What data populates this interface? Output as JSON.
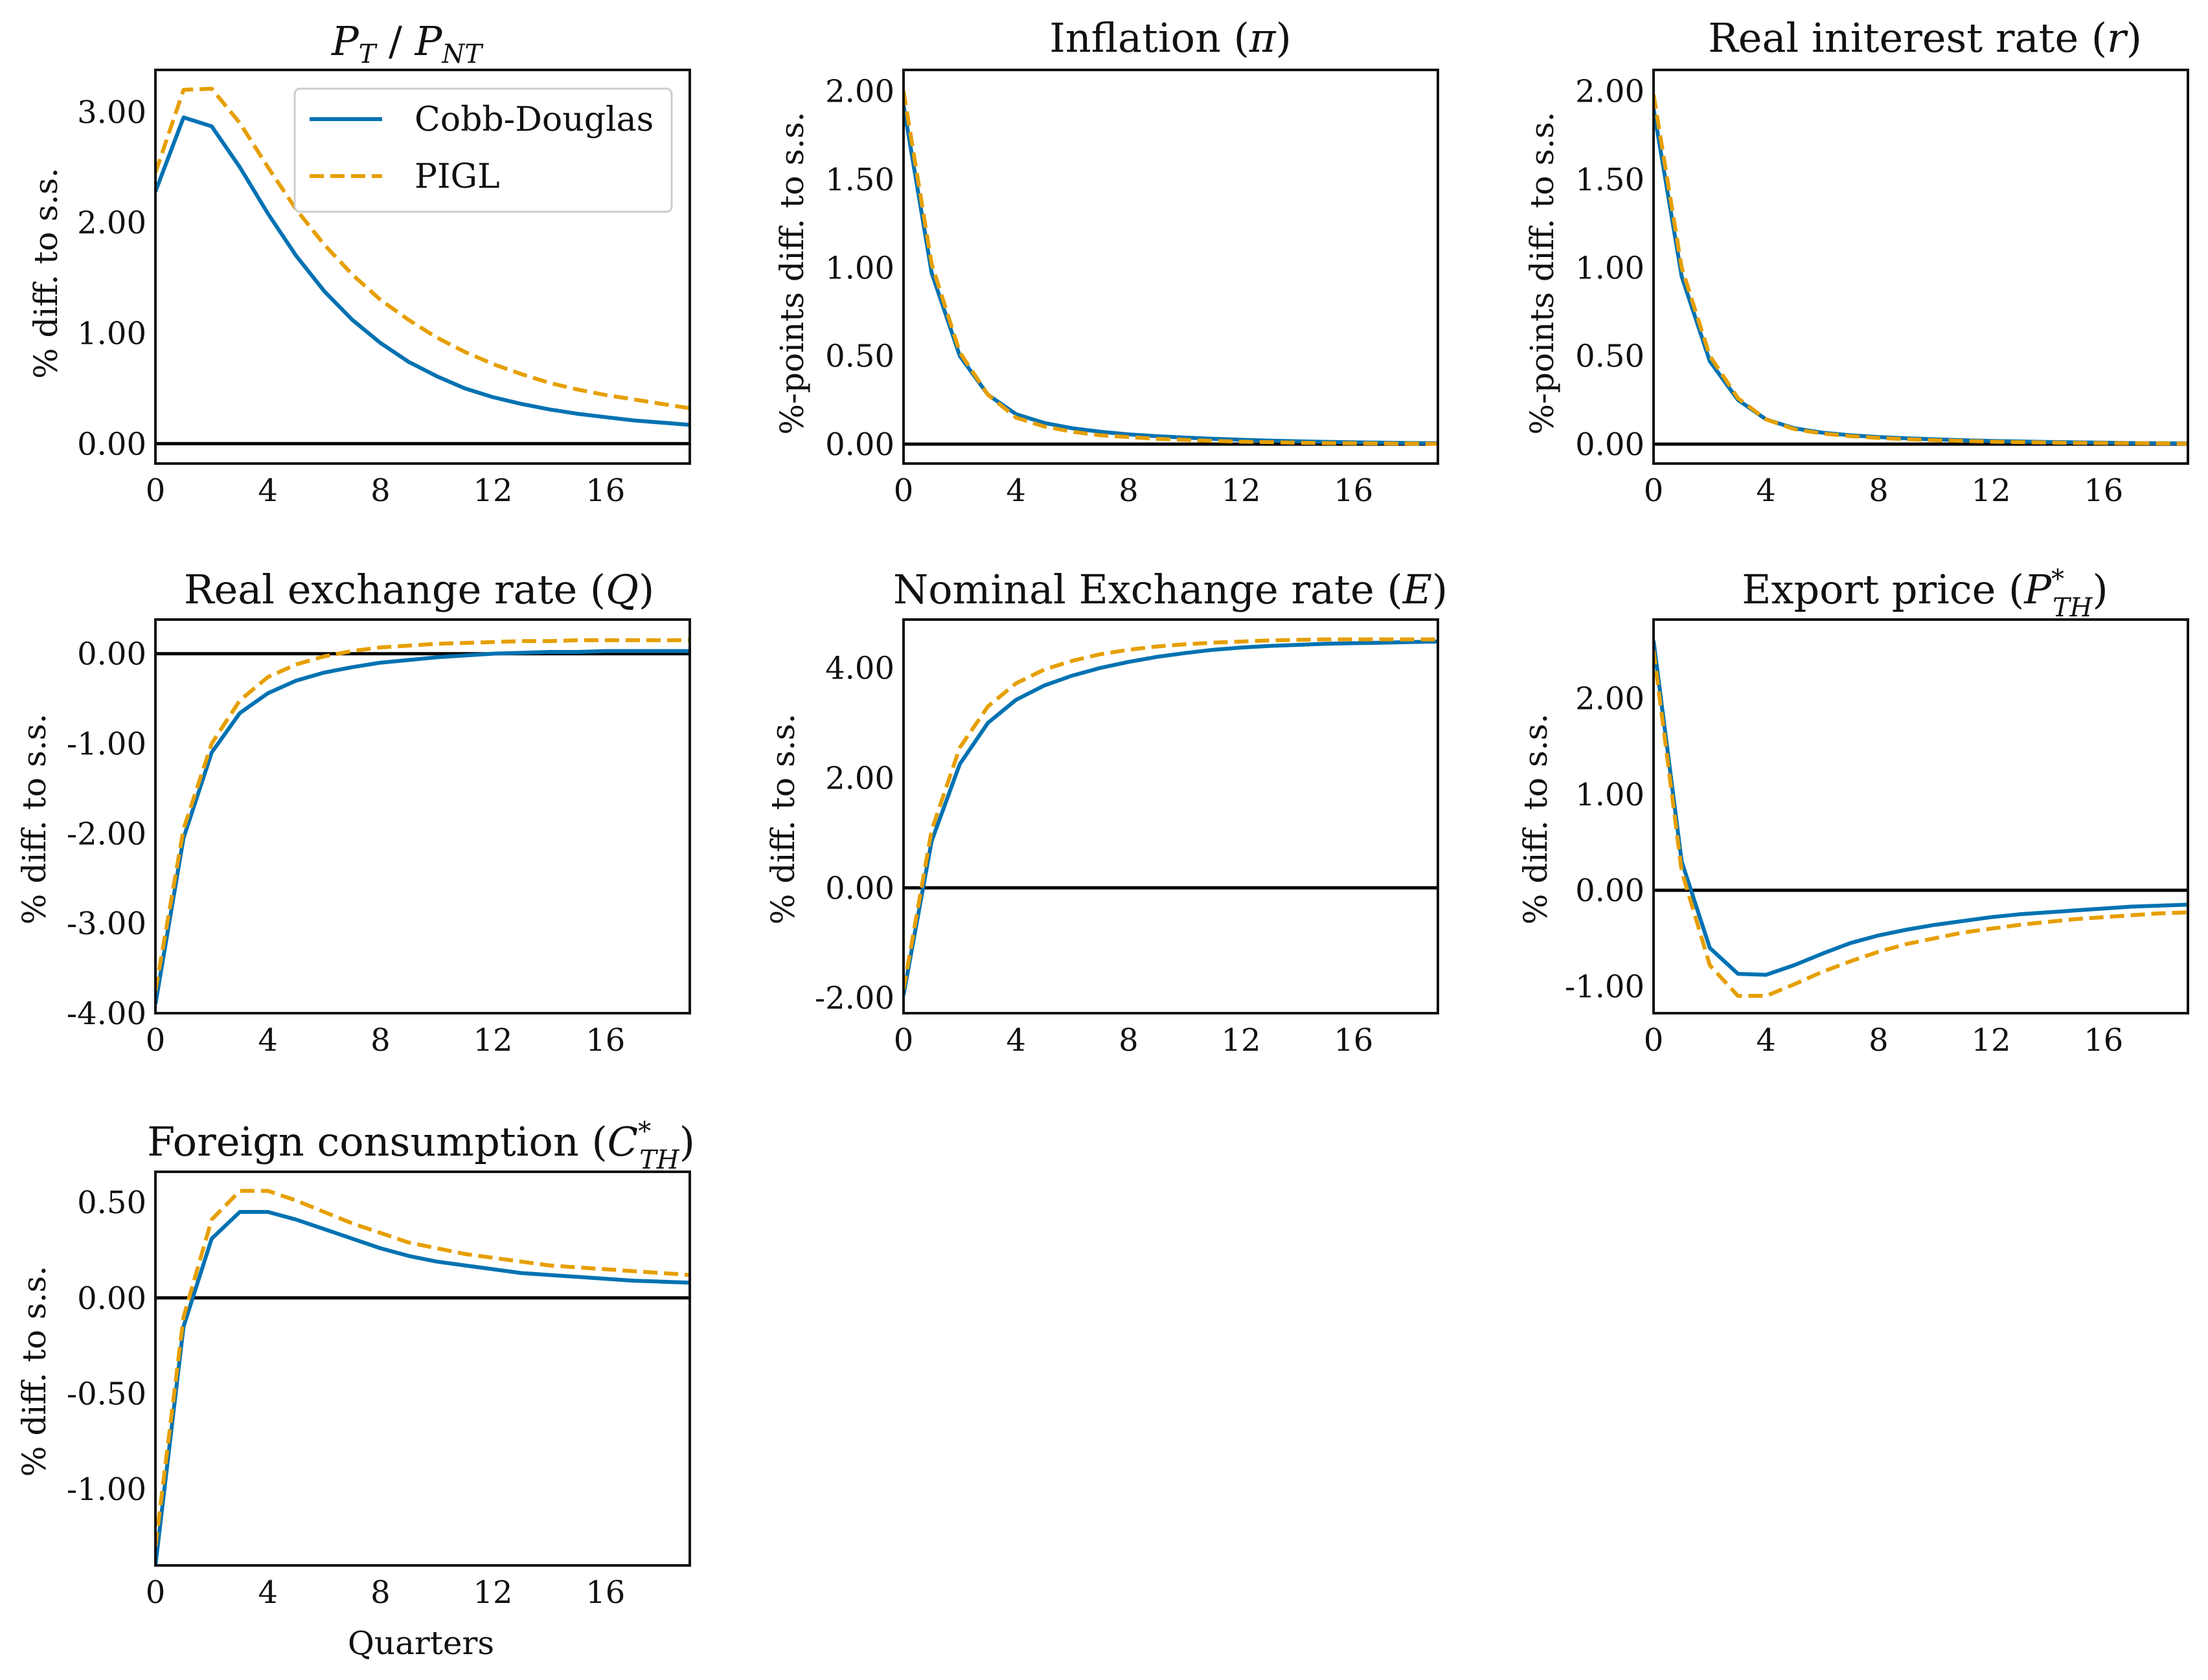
{
  "figure": {
    "legend": [
      {
        "label": "Cobb-Douglas",
        "color": "#0072B2",
        "dash": "solid"
      },
      {
        "label": "PIGL",
        "color": "#E69F00",
        "dash": "dashed"
      }
    ],
    "legend_placement": "top-right of first panel",
    "shared_xlabel": "Quarters"
  },
  "chart_data": [
    {
      "type": "line",
      "title": "P_T / P_NT",
      "ylabel": "% diff. to s.s.",
      "xlim": [
        0,
        19
      ],
      "ylim": [
        -0.18,
        3.38
      ],
      "xticks": [
        "0",
        "4",
        "8",
        "12",
        "16"
      ],
      "yticks": [
        {
          "v": 0,
          "label": "0.00"
        },
        {
          "v": 1,
          "label": "1.00"
        },
        {
          "v": 2,
          "label": "2.00"
        },
        {
          "v": 3,
          "label": "3.00"
        }
      ],
      "x": [
        0,
        1,
        2,
        3,
        4,
        5,
        6,
        7,
        8,
        9,
        10,
        11,
        12,
        13,
        14,
        15,
        16,
        17,
        18,
        19
      ],
      "series": [
        {
          "name": "Cobb-Douglas",
          "values": [
            2.28,
            2.95,
            2.87,
            2.5,
            2.08,
            1.7,
            1.38,
            1.12,
            0.91,
            0.74,
            0.61,
            0.5,
            0.42,
            0.36,
            0.31,
            0.27,
            0.24,
            0.21,
            0.19,
            0.17
          ]
        },
        {
          "name": "PIGL",
          "values": [
            2.45,
            3.2,
            3.21,
            2.9,
            2.5,
            2.12,
            1.8,
            1.53,
            1.3,
            1.12,
            0.96,
            0.83,
            0.72,
            0.63,
            0.55,
            0.49,
            0.44,
            0.4,
            0.36,
            0.32
          ]
        }
      ]
    },
    {
      "type": "line",
      "title": "Inflation (π)",
      "ylabel": "%-points diff. to s.s.",
      "xlim": [
        0,
        19
      ],
      "ylim": [
        -0.11,
        2.12
      ],
      "xticks": [
        "0",
        "4",
        "8",
        "12",
        "16"
      ],
      "yticks": [
        {
          "v": 0,
          "label": "0.00"
        },
        {
          "v": 0.5,
          "label": "0.50"
        },
        {
          "v": 1,
          "label": "1.00"
        },
        {
          "v": 1.5,
          "label": "1.50"
        },
        {
          "v": 2,
          "label": "2.00"
        }
      ],
      "x": [
        0,
        1,
        2,
        3,
        4,
        5,
        6,
        7,
        8,
        9,
        10,
        11,
        12,
        13,
        14,
        15,
        16,
        17,
        18,
        19
      ],
      "series": [
        {
          "name": "Cobb-Douglas",
          "values": [
            1.92,
            0.97,
            0.5,
            0.28,
            0.17,
            0.12,
            0.09,
            0.07,
            0.055,
            0.045,
            0.037,
            0.03,
            0.025,
            0.02,
            0.016,
            0.013,
            0.01,
            0.008,
            0.006,
            0.005
          ]
        },
        {
          "name": "PIGL",
          "values": [
            2.0,
            1.02,
            0.52,
            0.28,
            0.15,
            0.1,
            0.07,
            0.05,
            0.04,
            0.03,
            0.024,
            0.018,
            0.014,
            0.011,
            0.008,
            0.006,
            0.005,
            0.004,
            0.003,
            0.002
          ]
        }
      ]
    },
    {
      "type": "line",
      "title": "Real initerest rate (r)",
      "ylabel": "%-points diff. to s.s.",
      "xlim": [
        0,
        19
      ],
      "ylim": [
        -0.11,
        2.12
      ],
      "xticks": [
        "0",
        "4",
        "8",
        "12",
        "16"
      ],
      "yticks": [
        {
          "v": 0,
          "label": "0.00"
        },
        {
          "v": 0.5,
          "label": "0.50"
        },
        {
          "v": 1,
          "label": "1.00"
        },
        {
          "v": 1.5,
          "label": "1.50"
        },
        {
          "v": 2,
          "label": "2.00"
        }
      ],
      "x": [
        0,
        1,
        2,
        3,
        4,
        5,
        6,
        7,
        8,
        9,
        10,
        11,
        12,
        13,
        14,
        15,
        16,
        17,
        18,
        19
      ],
      "series": [
        {
          "name": "Cobb-Douglas",
          "values": [
            1.9,
            0.95,
            0.47,
            0.25,
            0.14,
            0.09,
            0.065,
            0.05,
            0.04,
            0.033,
            0.027,
            0.022,
            0.018,
            0.015,
            0.012,
            0.01,
            0.008,
            0.006,
            0.005,
            0.004
          ]
        },
        {
          "name": "PIGL",
          "values": [
            1.98,
            1.0,
            0.5,
            0.26,
            0.14,
            0.085,
            0.06,
            0.045,
            0.035,
            0.028,
            0.022,
            0.018,
            0.014,
            0.011,
            0.009,
            0.007,
            0.006,
            0.005,
            0.004,
            0.003
          ]
        }
      ]
    },
    {
      "type": "line",
      "title": "Real exchange rate (Q)",
      "ylabel": "% diff. to s.s.",
      "xlim": [
        0,
        19
      ],
      "ylim": [
        -4.0,
        0.38
      ],
      "xticks": [
        "0",
        "4",
        "8",
        "12",
        "16"
      ],
      "yticks": [
        {
          "v": 0,
          "label": "0.00"
        },
        {
          "v": -1,
          "label": "-1.00"
        },
        {
          "v": -2,
          "label": "-2.00"
        },
        {
          "v": -3,
          "label": "-3.00"
        },
        {
          "v": -4,
          "label": "-4.00"
        }
      ],
      "x": [
        0,
        1,
        2,
        3,
        4,
        5,
        6,
        7,
        8,
        9,
        10,
        11,
        12,
        13,
        14,
        15,
        16,
        17,
        18,
        19
      ],
      "series": [
        {
          "name": "Cobb-Douglas",
          "values": [
            -3.9,
            -2.05,
            -1.1,
            -0.66,
            -0.44,
            -0.3,
            -0.21,
            -0.15,
            -0.1,
            -0.07,
            -0.04,
            -0.02,
            0.0,
            0.01,
            0.02,
            0.02,
            0.03,
            0.03,
            0.03,
            0.03
          ]
        },
        {
          "name": "PIGL",
          "values": [
            -3.75,
            -1.95,
            -1.0,
            -0.52,
            -0.26,
            -0.12,
            -0.03,
            0.03,
            0.07,
            0.09,
            0.11,
            0.12,
            0.13,
            0.14,
            0.14,
            0.15,
            0.15,
            0.15,
            0.15,
            0.15
          ]
        }
      ]
    },
    {
      "type": "line",
      "title": "Nominal Exchange rate (E)",
      "ylabel": "% diff. to s.s.",
      "xlim": [
        0,
        19
      ],
      "ylim": [
        -2.28,
        4.88
      ],
      "xticks": [
        "0",
        "4",
        "8",
        "12",
        "16"
      ],
      "yticks": [
        {
          "v": -2,
          "label": "-2.00"
        },
        {
          "v": 0,
          "label": "0.00"
        },
        {
          "v": 2,
          "label": "2.00"
        },
        {
          "v": 4,
          "label": "4.00"
        }
      ],
      "x": [
        0,
        1,
        2,
        3,
        4,
        5,
        6,
        7,
        8,
        9,
        10,
        11,
        12,
        13,
        14,
        15,
        16,
        17,
        18,
        19
      ],
      "series": [
        {
          "name": "Cobb-Douglas",
          "values": [
            -1.95,
            0.85,
            2.25,
            3.0,
            3.42,
            3.68,
            3.86,
            4.0,
            4.11,
            4.2,
            4.27,
            4.33,
            4.37,
            4.4,
            4.42,
            4.44,
            4.45,
            4.46,
            4.47,
            4.48
          ]
        },
        {
          "name": "PIGL",
          "values": [
            -1.85,
            1.05,
            2.55,
            3.3,
            3.72,
            3.97,
            4.13,
            4.25,
            4.33,
            4.39,
            4.43,
            4.46,
            4.48,
            4.5,
            4.51,
            4.52,
            4.52,
            4.52,
            4.52,
            4.52
          ]
        }
      ]
    },
    {
      "type": "line",
      "title": "Export price (P*_TH)",
      "ylabel": "% diff. to s.s.",
      "xlim": [
        0,
        19
      ],
      "ylim": [
        -1.28,
        2.82
      ],
      "xticks": [
        "0",
        "4",
        "8",
        "12",
        "16"
      ],
      "yticks": [
        {
          "v": -1,
          "label": "-1.00"
        },
        {
          "v": 0,
          "label": "0.00"
        },
        {
          "v": 1,
          "label": "1.00"
        },
        {
          "v": 2,
          "label": "2.00"
        }
      ],
      "x": [
        0,
        1,
        2,
        3,
        4,
        5,
        6,
        7,
        8,
        9,
        10,
        11,
        12,
        13,
        14,
        15,
        16,
        17,
        18,
        19
      ],
      "series": [
        {
          "name": "Cobb-Douglas",
          "values": [
            2.6,
            0.3,
            -0.6,
            -0.87,
            -0.88,
            -0.78,
            -0.66,
            -0.55,
            -0.47,
            -0.41,
            -0.36,
            -0.32,
            -0.28,
            -0.25,
            -0.23,
            -0.21,
            -0.19,
            -0.17,
            -0.16,
            -0.15
          ]
        },
        {
          "name": "PIGL",
          "values": [
            2.5,
            0.2,
            -0.78,
            -1.1,
            -1.1,
            -0.98,
            -0.85,
            -0.74,
            -0.64,
            -0.56,
            -0.5,
            -0.44,
            -0.4,
            -0.36,
            -0.33,
            -0.3,
            -0.28,
            -0.26,
            -0.24,
            -0.23
          ]
        }
      ]
    },
    {
      "type": "line",
      "title": "Foreign consumption (C*_TH)",
      "ylabel": "% diff. to s.s.",
      "xlabel": "Quarters",
      "xlim": [
        0,
        19
      ],
      "ylim": [
        -1.4,
        0.66
      ],
      "xticks": [
        "0",
        "4",
        "8",
        "12",
        "16"
      ],
      "yticks": [
        {
          "v": -1,
          "label": "-1.00"
        },
        {
          "v": -0.5,
          "label": "-0.50"
        },
        {
          "v": 0,
          "label": "0.00"
        },
        {
          "v": 0.5,
          "label": "0.50"
        }
      ],
      "x": [
        0,
        1,
        2,
        3,
        4,
        5,
        6,
        7,
        8,
        9,
        10,
        11,
        12,
        13,
        14,
        15,
        16,
        17,
        18,
        19
      ],
      "series": [
        {
          "name": "Cobb-Douglas",
          "values": [
            -1.4,
            -0.15,
            0.31,
            0.45,
            0.45,
            0.41,
            0.36,
            0.31,
            0.26,
            0.22,
            0.19,
            0.17,
            0.15,
            0.13,
            0.12,
            0.11,
            0.1,
            0.09,
            0.085,
            0.08
          ]
        },
        {
          "name": "PIGL",
          "values": [
            -1.3,
            -0.1,
            0.41,
            0.56,
            0.56,
            0.51,
            0.45,
            0.39,
            0.34,
            0.29,
            0.26,
            0.23,
            0.21,
            0.19,
            0.17,
            0.16,
            0.15,
            0.14,
            0.13,
            0.12
          ]
        }
      ]
    }
  ]
}
